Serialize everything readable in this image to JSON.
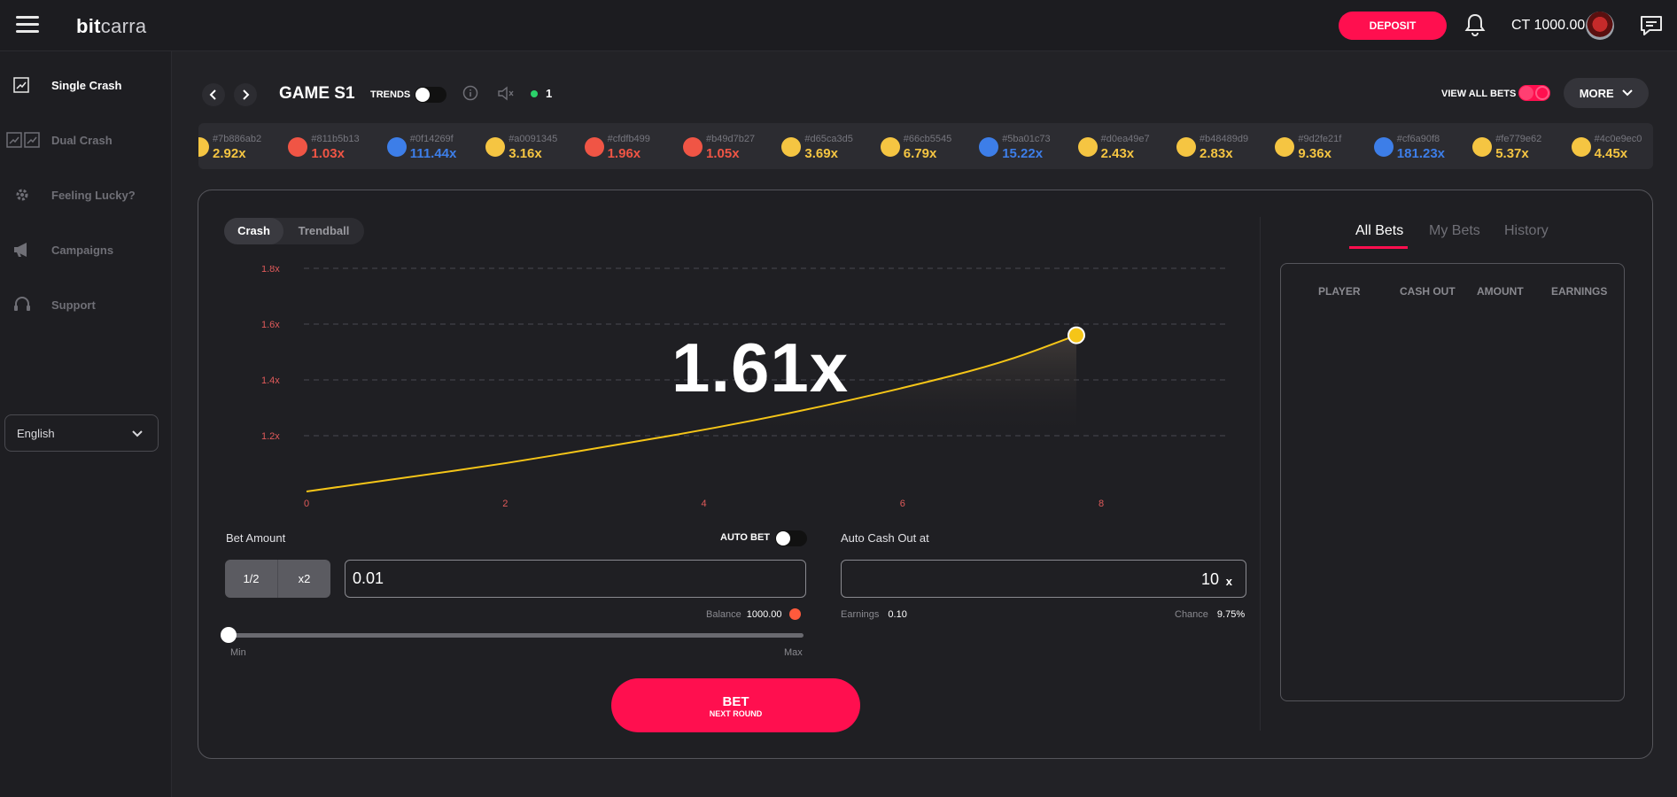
{
  "header": {
    "logo_bold": "bit",
    "logo_rest": "carra",
    "deposit_label": "DEPOSIT",
    "balance": "CT 1000.00",
    "icons": [
      "menu-icon",
      "bell-icon",
      "avatar",
      "chat-icon"
    ]
  },
  "sidebar": {
    "items": [
      {
        "label": "Single Crash",
        "icon": "chart-icon"
      },
      {
        "label": "Dual Crash",
        "icon": "dual-chart-icon"
      },
      {
        "label": "Feeling Lucky?",
        "icon": "gear-icon"
      },
      {
        "label": "Campaigns",
        "icon": "megaphone-icon"
      },
      {
        "label": "Support",
        "icon": "headset-icon"
      }
    ],
    "language": "English"
  },
  "gamebar": {
    "title": "GAME S1",
    "trends_label": "TRENDS",
    "online_count": "1",
    "view_all_label": "VIEW ALL BETS",
    "more_label": "MORE"
  },
  "history": [
    {
      "hash": "#7b886ab2",
      "mult": "2.92x",
      "color": "#f5c542"
    },
    {
      "hash": "#811b5b13",
      "mult": "1.03x",
      "color": "#f05545"
    },
    {
      "hash": "#0f14269f",
      "mult": "111.44x",
      "color": "#3d7ee8"
    },
    {
      "hash": "#a0091345",
      "mult": "3.16x",
      "color": "#f5c542"
    },
    {
      "hash": "#cfdfb499",
      "mult": "1.96x",
      "color": "#f05545"
    },
    {
      "hash": "#b49d7b27",
      "mult": "1.05x",
      "color": "#f05545"
    },
    {
      "hash": "#d65ca3d5",
      "mult": "3.69x",
      "color": "#f5c542"
    },
    {
      "hash": "#66cb5545",
      "mult": "6.79x",
      "color": "#f5c542"
    },
    {
      "hash": "#5ba01c73",
      "mult": "15.22x",
      "color": "#3d7ee8"
    },
    {
      "hash": "#d0ea49e7",
      "mult": "2.43x",
      "color": "#f5c542"
    },
    {
      "hash": "#b48489d9",
      "mult": "2.83x",
      "color": "#f5c542"
    },
    {
      "hash": "#9d2fe21f",
      "mult": "9.36x",
      "color": "#f5c542"
    },
    {
      "hash": "#cf6a90f8",
      "mult": "181.23x",
      "color": "#3d7ee8"
    },
    {
      "hash": "#fe779e62",
      "mult": "5.37x",
      "color": "#f5c542"
    },
    {
      "hash": "#4c0e9ec0",
      "mult": "4.45x",
      "color": "#f5c542"
    }
  ],
  "mode_tabs": [
    "Crash",
    "Trendball"
  ],
  "current_multiplier": "1.61x",
  "chart_data": {
    "type": "line",
    "x_ticks": [
      "0",
      "2",
      "4",
      "6",
      "8"
    ],
    "y_ticks": [
      "1.2x",
      "1.4x",
      "1.6x",
      "1.8x"
    ],
    "xlim": [
      0,
      8
    ],
    "ylim": [
      1.0,
      1.8
    ],
    "x": [
      0,
      1,
      2,
      3,
      4,
      5,
      6,
      7,
      7.75
    ],
    "y": [
      1.0,
      1.05,
      1.1,
      1.16,
      1.22,
      1.29,
      1.37,
      1.46,
      1.56
    ],
    "grid": true,
    "line_color": "#f5c518"
  },
  "bet": {
    "amount_label": "Bet Amount",
    "auto_bet_label": "AUTO BET",
    "half_label": "1/2",
    "double_label": "x2",
    "amount_value": "0.01",
    "balance_label": "Balance",
    "balance_value": "1000.00",
    "slider_min": "Min",
    "slider_max": "Max",
    "slider_level": 0,
    "button_label": "BET",
    "button_sublabel": "NEXT ROUND"
  },
  "cashout": {
    "label": "Auto Cash Out at",
    "value": "10",
    "unit": "x",
    "earnings_label": "Earnings",
    "earnings_value": "0.10",
    "chance_label": "Chance",
    "chance_value": "9.75%"
  },
  "bets_panel": {
    "tabs": [
      "All Bets",
      "My Bets",
      "History"
    ],
    "columns": [
      "PLAYER",
      "CASH OUT",
      "AMOUNT",
      "EARNINGS"
    ]
  }
}
